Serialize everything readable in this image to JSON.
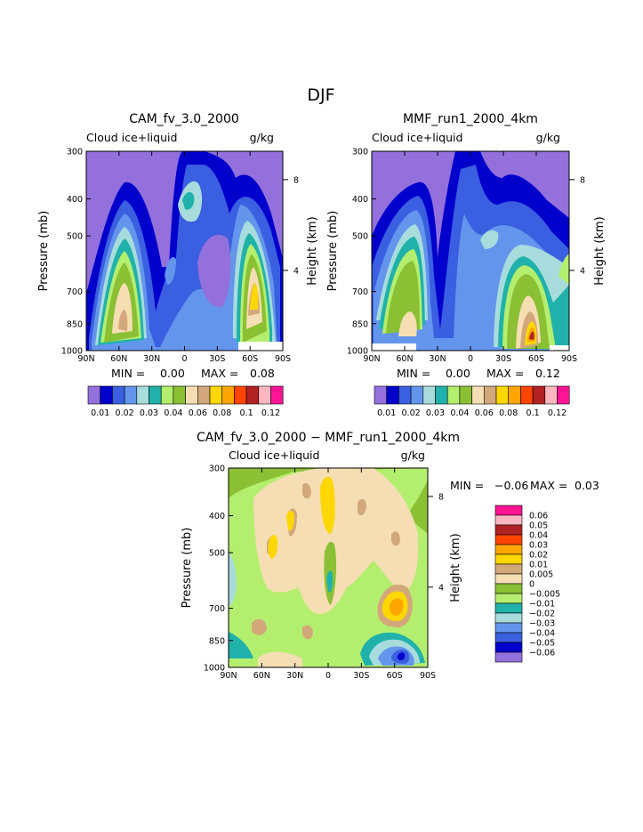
{
  "page_title": "DJF",
  "colors": {
    "c0.01": "#9370db",
    "c0.02": "#0000cd",
    "c0.03": "#3a5fe0",
    "c0.04": "#6495ed",
    "c0.05": "#a8dcdc",
    "c0.06": "#20b2aa",
    "c0.07": "#b4ee6e",
    "c0.08": "#8bc034",
    "c0.09": "#f5deb3",
    "c0.10": "#d2a87a",
    "c0.11": "#ffd700",
    "c0.12": "#ffa500",
    "c0.13": "#ff4500",
    "c0.14": "#b22222",
    "c0.15": "#ffb6c1",
    "c0.16": "#ff1493"
  },
  "chart_data": [
    {
      "type": "contour",
      "title": "CAM_fv_3.0_2000",
      "field_label": "Cloud ice+liquid",
      "units": "g/kg",
      "xlabel": "",
      "ylabel": "Pressure (mb)",
      "y2label": "Height (km)",
      "xticks": [
        "90N",
        "60N",
        "30N",
        "0",
        "30S",
        "60S",
        "90S"
      ],
      "yticks": [
        "300",
        "400",
        "500",
        "700",
        "850",
        "1000"
      ],
      "y2ticks": [
        "8",
        "4"
      ],
      "min_label": "MIN =",
      "min_value": "0.00",
      "max_label": "MAX =",
      "max_value": "0.08",
      "colorbar_levels": [
        "0.01",
        "0.02",
        "0.03",
        "0.04",
        "0.06",
        "0.08",
        "0.1",
        "0.12"
      ]
    },
    {
      "type": "contour",
      "title": "MMF_run1_2000_4km",
      "field_label": "Cloud ice+liquid",
      "units": "g/kg",
      "xlabel": "",
      "ylabel": "Pressure (mb)",
      "y2label": "Height (km)",
      "xticks": [
        "90N",
        "60N",
        "30N",
        "0",
        "30S",
        "60S",
        "90S"
      ],
      "yticks": [
        "300",
        "400",
        "500",
        "700",
        "850",
        "1000"
      ],
      "y2ticks": [
        "8",
        "4"
      ],
      "min_label": "MIN =",
      "min_value": "0.00",
      "max_label": "MAX =",
      "max_value": "0.12",
      "colorbar_levels": [
        "0.01",
        "0.02",
        "0.03",
        "0.04",
        "0.06",
        "0.08",
        "0.1",
        "0.12"
      ]
    },
    {
      "type": "contour",
      "title": "CAM_fv_3.0_2000 − MMF_run1_2000_4km",
      "field_label": "Cloud ice+liquid",
      "units": "g/kg",
      "xlabel": "",
      "ylabel": "Pressure (mb)",
      "y2label": "Height (km)",
      "xticks": [
        "90N",
        "60N",
        "30N",
        "0",
        "30S",
        "60S",
        "90S"
      ],
      "yticks": [
        "300",
        "400",
        "500",
        "700",
        "850",
        "1000"
      ],
      "y2ticks": [
        "8",
        "4"
      ],
      "min_label": "MIN =",
      "min_value": "−0.06",
      "max_label": "MAX =",
      "max_value": "0.03",
      "colorbar_levels": [
        "0.06",
        "0.05",
        "0.04",
        "0.03",
        "0.02",
        "0.01",
        "0.005",
        "0",
        "−0.005",
        "−0.01",
        "−0.02",
        "−0.03",
        "−0.04",
        "−0.05",
        "−0.06"
      ]
    }
  ]
}
